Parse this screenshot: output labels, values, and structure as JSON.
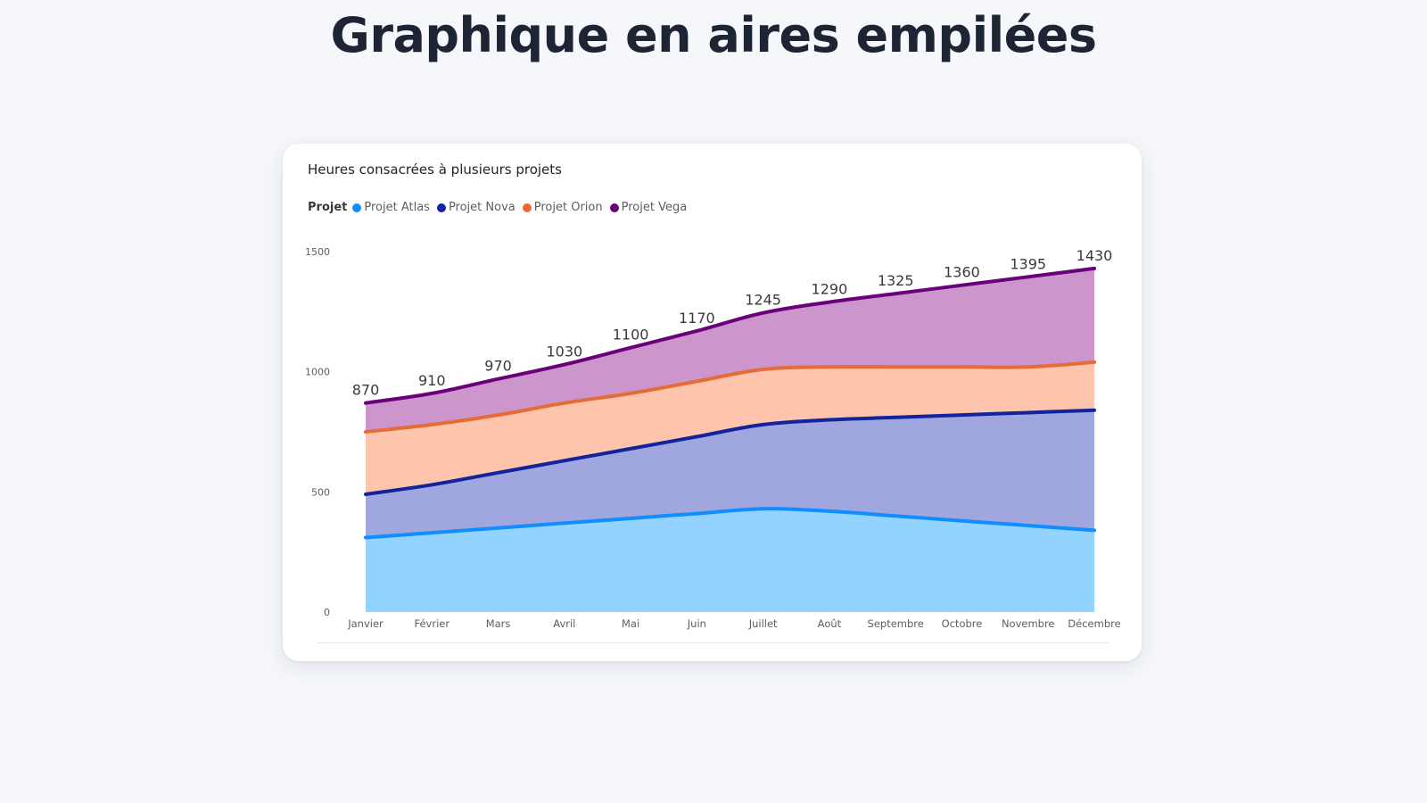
{
  "page": {
    "title": "Graphique en aires empilées"
  },
  "chart_card": {
    "title": "Heures consacrées à plusieurs projets",
    "legend_label": "Projet"
  },
  "colors": {
    "atlas_line": "#118DFF",
    "atlas_fill": "#93D3FF",
    "nova_line": "#12239E",
    "nova_fill": "#A0A7DE",
    "orion_line": "#E66C37",
    "orion_fill": "#FFC4AC",
    "vega_line": "#6B007B",
    "vega_fill": "#CC96CC"
  },
  "chart_data": {
    "type": "area",
    "stacked": true,
    "title": "Heures consacrées à plusieurs projets",
    "legend_title": "Projet",
    "legend_position": "top-left",
    "categories": [
      "Janvier",
      "Février",
      "Mars",
      "Avril",
      "Mai",
      "Juin",
      "Juillet",
      "Août",
      "Septembre",
      "Octobre",
      "Novembre",
      "Décembre"
    ],
    "series": [
      {
        "name": "Projet Atlas",
        "values": [
          310,
          330,
          350,
          370,
          390,
          410,
          430,
          420,
          400,
          380,
          360,
          340
        ]
      },
      {
        "name": "Projet Nova",
        "values": [
          180,
          200,
          230,
          260,
          290,
          320,
          350,
          380,
          410,
          440,
          470,
          500
        ]
      },
      {
        "name": "Projet Orion",
        "values": [
          260,
          250,
          240,
          240,
          230,
          230,
          230,
          220,
          210,
          200,
          190,
          200
        ]
      },
      {
        "name": "Projet Vega",
        "values": [
          120,
          130,
          150,
          160,
          190,
          210,
          235,
          270,
          305,
          340,
          375,
          390
        ]
      }
    ],
    "totals": [
      870,
      910,
      970,
      1030,
      1100,
      1170,
      1245,
      1290,
      1325,
      1360,
      1395,
      1430
    ],
    "ylim": [
      0,
      1500
    ],
    "yticks": [
      "0",
      "500",
      "1000",
      "1500"
    ],
    "grid": false
  }
}
